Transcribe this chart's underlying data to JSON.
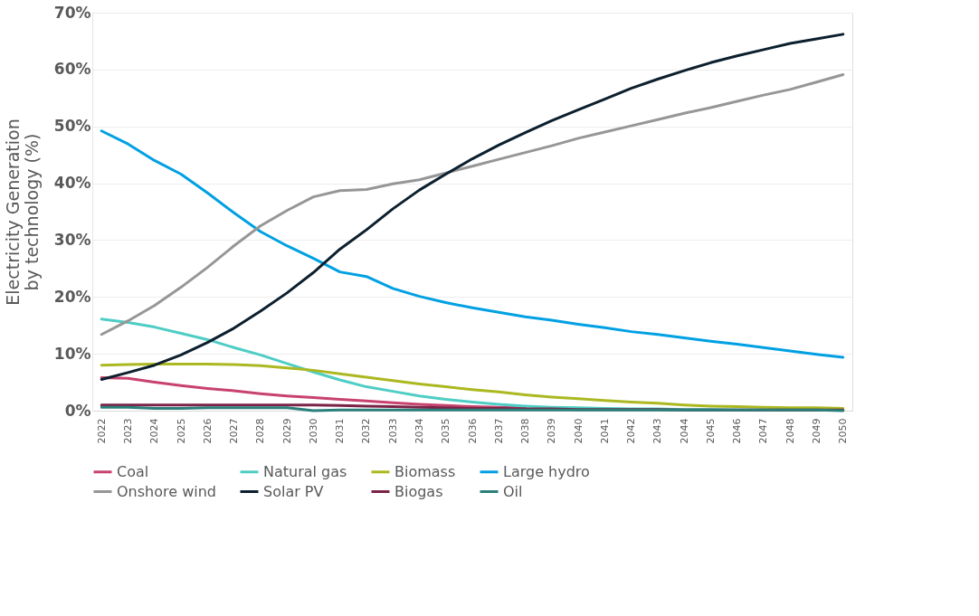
{
  "chart_data": {
    "type": "line",
    "ylabel": "Electricity Generation by technology (%)",
    "categories": [
      "2022",
      "2023",
      "2024",
      "2025",
      "2026",
      "2027",
      "2028",
      "2029",
      "2030",
      "2031",
      "2032",
      "2033",
      "2034",
      "2035",
      "2036",
      "2037",
      "2038",
      "2039",
      "2040",
      "2041",
      "2042",
      "2043",
      "2044",
      "2045",
      "2046",
      "2047",
      "2048",
      "2049",
      "2050"
    ],
    "series": [
      {
        "name": "Coal",
        "color": "#c8426e",
        "values": [
          5.8,
          5.7,
          5.0,
          4.4,
          3.9,
          3.5,
          3.0,
          2.6,
          2.3,
          2.0,
          1.7,
          1.4,
          1.1,
          0.9,
          0.7,
          0.6,
          0.5,
          null,
          null,
          null,
          null,
          null,
          null,
          null,
          null,
          null,
          null,
          null,
          null
        ]
      },
      {
        "name": "Natural gas",
        "color": "#4ecdc4",
        "values": [
          16.1,
          15.5,
          14.7,
          13.6,
          12.5,
          11.1,
          9.8,
          8.3,
          6.8,
          5.4,
          4.2,
          3.4,
          2.6,
          2.0,
          1.5,
          1.1,
          0.8,
          0.6,
          0.5,
          0.4,
          0.3,
          0.3,
          0.2,
          0.2,
          0.1,
          0.1,
          0.1,
          0.1,
          0.1
        ]
      },
      {
        "name": "Biomass",
        "color": "#acb820",
        "values": [
          8.0,
          8.1,
          8.2,
          8.2,
          8.2,
          8.1,
          7.9,
          7.5,
          7.1,
          6.5,
          5.9,
          5.3,
          4.7,
          4.2,
          3.7,
          3.3,
          2.8,
          2.4,
          2.1,
          1.8,
          1.5,
          1.3,
          1.0,
          0.8,
          0.7,
          0.6,
          0.5,
          0.5,
          0.4
        ]
      },
      {
        "name": "Large hydro",
        "color": "#00a0e3",
        "values": [
          49.2,
          46.9,
          44.0,
          41.6,
          38.3,
          34.8,
          31.5,
          29.0,
          26.8,
          24.4,
          23.6,
          21.5,
          20.1,
          19.0,
          18.1,
          17.3,
          16.5,
          15.9,
          15.2,
          14.6,
          13.9,
          13.4,
          12.8,
          12.2,
          11.7,
          11.1,
          10.5,
          9.9,
          9.4
        ]
      },
      {
        "name": "Onshore wind",
        "color": "#969696",
        "values": [
          13.4,
          15.8,
          18.5,
          21.7,
          25.2,
          29.0,
          32.5,
          35.2,
          37.6,
          38.7,
          38.9,
          39.9,
          40.6,
          41.8,
          43.0,
          44.2,
          45.4,
          46.6,
          47.9,
          49.0,
          50.1,
          51.2,
          52.3,
          53.3,
          54.4,
          55.5,
          56.5,
          57.8,
          59.1
        ]
      },
      {
        "name": "Solar PV",
        "color": "#0b1f2e",
        "values": [
          5.5,
          6.7,
          8.0,
          9.8,
          12.0,
          14.5,
          17.5,
          20.7,
          24.3,
          28.4,
          31.8,
          35.5,
          38.8,
          41.6,
          44.3,
          46.7,
          48.9,
          51.0,
          52.9,
          54.8,
          56.7,
          58.3,
          59.8,
          61.2,
          62.4,
          63.5,
          64.6,
          65.4,
          66.2
        ]
      },
      {
        "name": "Biogas",
        "color": "#7b2346",
        "values": [
          1.0,
          1.0,
          1.0,
          1.0,
          1.0,
          1.0,
          1.0,
          1.0,
          1.0,
          0.9,
          0.8,
          0.7,
          0.6,
          0.5,
          0.4,
          0.4,
          0.3,
          0.3,
          0.2,
          0.2,
          0.2,
          0.2,
          0.1,
          0.1,
          0.1,
          0.1,
          0.1,
          0.1,
          0.1
        ]
      },
      {
        "name": "Oil",
        "color": "#2a7f7a",
        "values": [
          0.6,
          0.6,
          0.4,
          0.4,
          0.5,
          0.5,
          0.5,
          0.5,
          0.0,
          0.1,
          0.1,
          0.1,
          0.1,
          0.1,
          0.1,
          0.1,
          0.1,
          0.1,
          0.1,
          0.1,
          0.1,
          0.1,
          0.1,
          0.1,
          0.1,
          0.1,
          0.1,
          0.1,
          0.0
        ]
      }
    ],
    "ylim": [
      0,
      70
    ],
    "yticks": [
      {
        "value": 0,
        "label": "0%"
      },
      {
        "value": 10,
        "label": "10%"
      },
      {
        "value": 20,
        "label": "20%"
      },
      {
        "value": 30,
        "label": "30%"
      },
      {
        "value": 40,
        "label": "40%"
      },
      {
        "value": 50,
        "label": "50%"
      },
      {
        "value": 60,
        "label": "60%"
      },
      {
        "value": 70,
        "label": "70%"
      }
    ],
    "grid": "y",
    "legend": "bottom",
    "marker": "none",
    "line_style": "solid"
  }
}
